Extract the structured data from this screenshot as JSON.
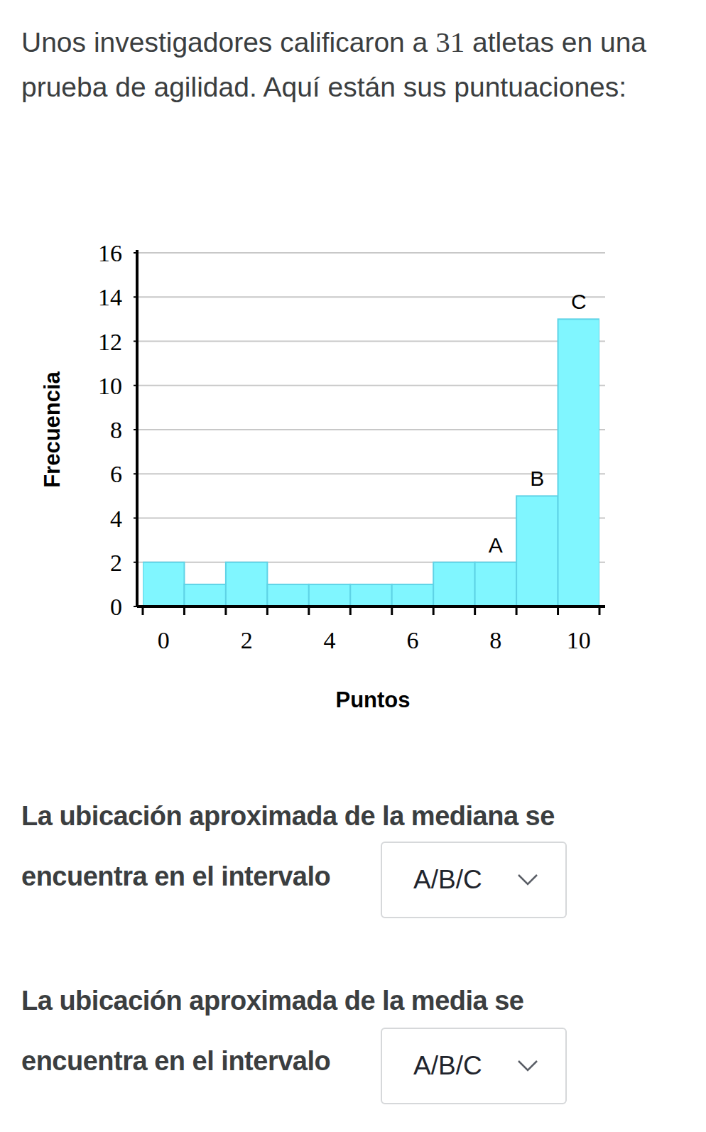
{
  "prompt": {
    "before": "Unos investigadores calificaron a",
    "number": 31,
    "after": "atletas en una prueba de agilidad. Aquí están sus puntuaciones:"
  },
  "chart_data": {
    "type": "histogram",
    "x_label": "Puntos",
    "y_label": "Frecuencia",
    "bins": [
      -0.5,
      0.5,
      1.5,
      2.5,
      3.5,
      4.5,
      5.5,
      6.5,
      7.5,
      8.5,
      9.5,
      10.5
    ],
    "values": [
      2,
      1,
      2,
      1,
      1,
      1,
      1,
      2,
      2,
      5,
      13
    ],
    "color": "#80f6ff",
    "xlim": [
      -0.5,
      10.5
    ],
    "xticks": [
      0,
      2,
      4,
      6,
      8,
      10
    ],
    "ylim": [
      0,
      16
    ],
    "yticks": [
      0,
      2,
      4,
      6,
      8,
      10,
      12,
      14,
      16
    ],
    "grid": true,
    "annotations": [
      {
        "text": "A",
        "x": 8
      },
      {
        "text": "B",
        "x": 9
      },
      {
        "text": "C",
        "x": 10
      }
    ]
  },
  "questions": [
    {
      "line1": "La ubicación aproximada de la mediana se",
      "line2": "encuentra en el intervalo",
      "choice": "A/B/C"
    },
    {
      "line1": "La ubicación aproximada de la media se",
      "line2": "encuentra en el intervalo",
      "choice": "A/B/C"
    }
  ]
}
